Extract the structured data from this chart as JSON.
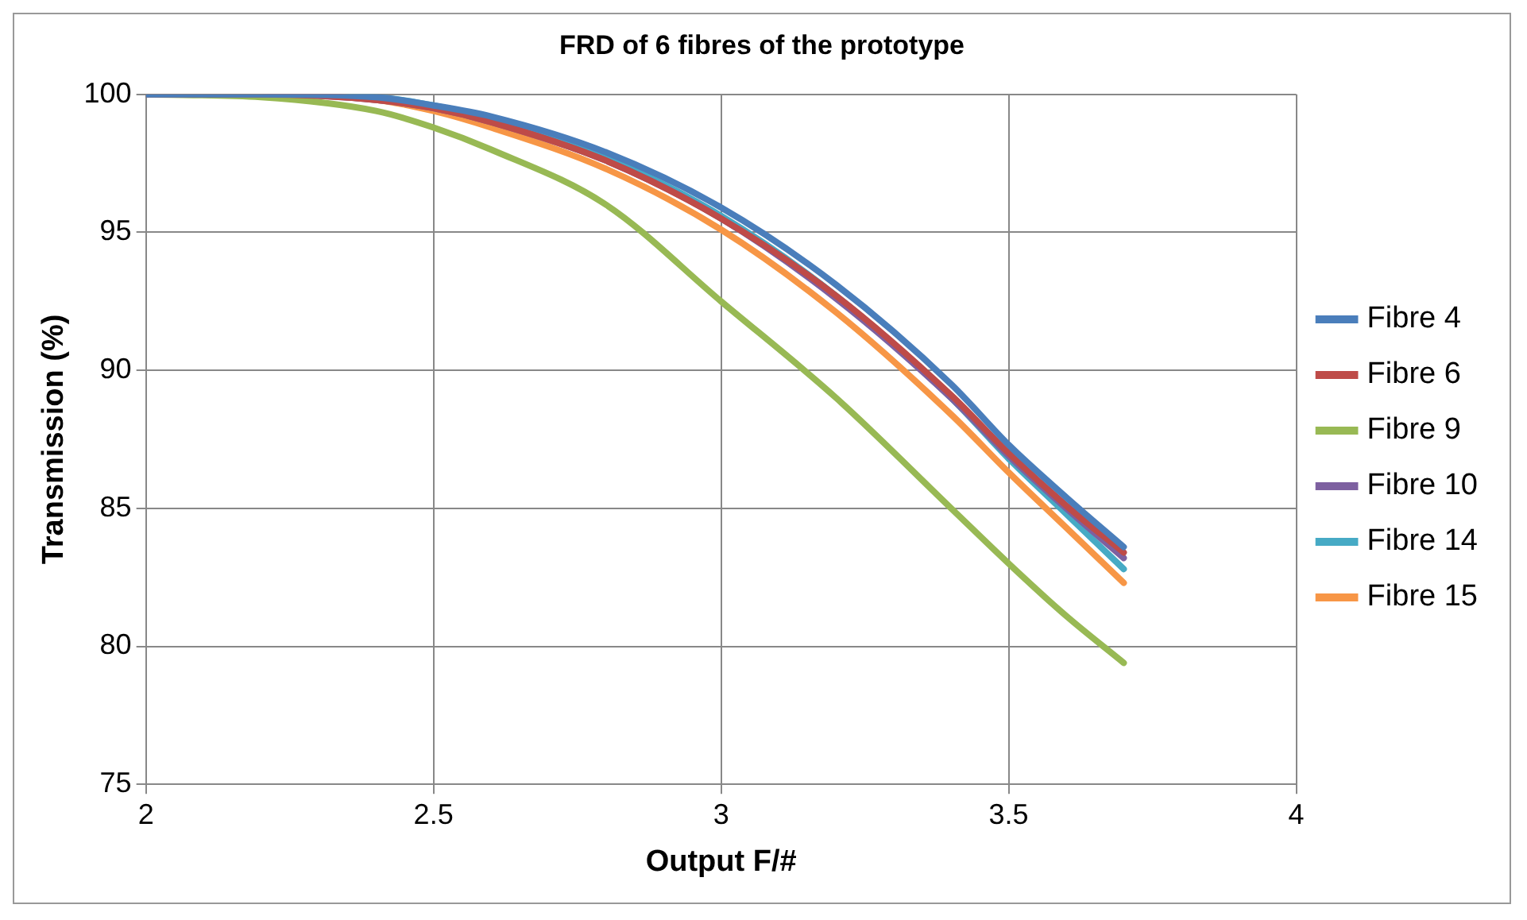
{
  "chart_data": {
    "type": "line",
    "title": "FRD of 6 fibres of the prototype",
    "xlabel": "Output F/#",
    "ylabel": "Transmission (%)",
    "x": [
      2,
      2.2,
      2.4,
      2.5,
      2.6,
      2.8,
      3.0,
      3.2,
      3.4,
      3.5,
      3.6,
      3.7
    ],
    "series": [
      {
        "name": "Fibre 4",
        "color": "#4a7ebb",
        "values": [
          100,
          100,
          99.9,
          99.6,
          99.2,
          97.9,
          95.9,
          93.1,
          89.5,
          87.3,
          85.4,
          83.6
        ]
      },
      {
        "name": "Fibre 6",
        "color": "#be4b48",
        "values": [
          100,
          100,
          99.8,
          99.5,
          99.0,
          97.6,
          95.5,
          92.7,
          89.1,
          87.0,
          85.1,
          83.4
        ]
      },
      {
        "name": "Fibre 9",
        "color": "#98b954",
        "values": [
          100,
          99.9,
          99.4,
          98.8,
          98.0,
          96.0,
          92.5,
          89.0,
          85.0,
          83.0,
          81.1,
          79.4
        ]
      },
      {
        "name": "Fibre 10",
        "color": "#7d60a0",
        "values": [
          100,
          100,
          99.8,
          99.5,
          99.0,
          97.6,
          95.5,
          92.6,
          89.0,
          86.9,
          85.0,
          83.2
        ]
      },
      {
        "name": "Fibre 14",
        "color": "#46aac5",
        "values": [
          100,
          100,
          99.9,
          99.6,
          99.1,
          97.7,
          95.6,
          92.7,
          89.0,
          86.8,
          84.8,
          82.8
        ]
      },
      {
        "name": "Fibre 15",
        "color": "#f79646",
        "values": [
          100,
          100,
          99.8,
          99.4,
          98.8,
          97.3,
          95.1,
          92.1,
          88.4,
          86.3,
          84.3,
          82.3
        ]
      }
    ],
    "xlim": [
      2,
      4
    ],
    "xticks": [
      2,
      2.5,
      3,
      3.5,
      4
    ],
    "ylim": [
      75,
      100
    ],
    "yticks": [
      75,
      80,
      85,
      90,
      95,
      100
    ],
    "grid": true,
    "legend": "right",
    "marker": "none",
    "line_style": "solid"
  }
}
